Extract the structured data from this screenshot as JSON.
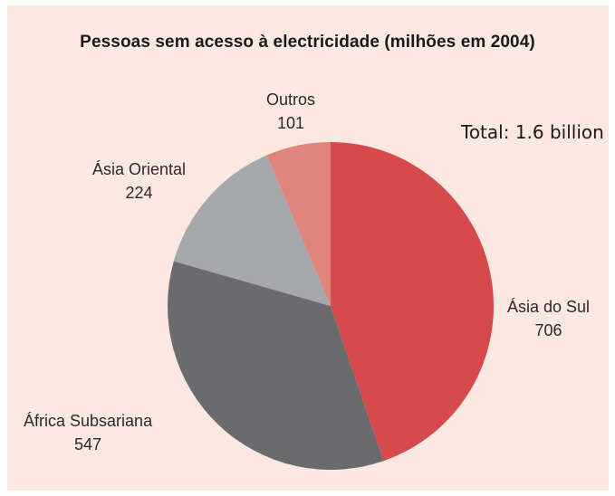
{
  "chart_data": {
    "type": "pie",
    "title": "Pessoas sem acesso à electricidade (milhões em 2004)",
    "annotation": "Total: 1.6 billion",
    "slices": [
      {
        "label": "Ásia do Sul",
        "value": 706,
        "value_label": "706",
        "color": "#d6494c"
      },
      {
        "label": "África Subsariana",
        "value": 547,
        "value_label": "547",
        "color": "#6b6b6e"
      },
      {
        "label": "Ásia Oriental",
        "value": 224,
        "value_label": "224",
        "color": "#a7a8ab"
      },
      {
        "label": "Outros",
        "value": 101,
        "value_label": "101",
        "color": "#e0857b"
      }
    ]
  }
}
